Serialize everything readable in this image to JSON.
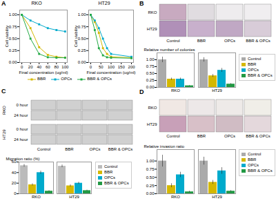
{
  "chart_data": [
    {
      "type": "line",
      "title": "RKO",
      "xlabel": "Final concentration (ug/ml)",
      "ylabel": "Cell viability",
      "x": [
        0,
        20,
        40,
        60,
        80,
        100
      ],
      "series": [
        {
          "name": "BBR",
          "color": "#d4b800",
          "values": [
            1.0,
            0.72,
            0.32,
            0.16,
            0.12,
            0.1
          ]
        },
        {
          "name": "OPCs",
          "color": "#00aacc",
          "values": [
            1.0,
            0.88,
            0.8,
            0.72,
            0.68,
            0.65
          ]
        },
        {
          "name": "BBR & OPCs",
          "color": "#22aa44",
          "values": [
            1.0,
            0.5,
            0.18,
            0.11,
            0.1,
            0.1
          ]
        }
      ],
      "xlim": [
        -5,
        105
      ],
      "xticks": [
        0,
        20,
        40,
        60,
        80,
        100
      ],
      "ylim": [
        0,
        1.1
      ],
      "yticks": [
        {
          "value": 0,
          "label": "0.00"
        },
        {
          "value": 0.25,
          "label": "0.25"
        },
        {
          "value": 0.5,
          "label": "0.50"
        },
        {
          "value": 0.75,
          "label": "0.75"
        },
        {
          "value": 1,
          "label": "1.00"
        }
      ],
      "marker": "square",
      "legend": "bottom",
      "annotations": [
        "A"
      ]
    },
    {
      "type": "line",
      "title": "HT29",
      "xlabel": "Final concentration (ug/ml)",
      "ylabel": "Cell viability",
      "x": [
        0,
        20,
        40,
        60,
        80,
        100,
        200
      ],
      "series": [
        {
          "name": "BBR",
          "color": "#d4b800",
          "values": [
            1.0,
            0.85,
            0.62,
            0.3,
            0.18,
            0.12,
            0.1
          ]
        },
        {
          "name": "OPCs",
          "color": "#00aacc",
          "values": [
            1.0,
            0.88,
            0.72,
            0.5,
            0.3,
            0.18,
            0.12
          ]
        },
        {
          "name": "BBR & OPCs",
          "color": "#22aa44",
          "values": [
            1.0,
            0.68,
            0.3,
            0.15,
            0.11,
            0.1,
            0.09
          ]
        }
      ],
      "xlim": [
        -10,
        210
      ],
      "xticks": [
        0,
        50,
        100,
        150,
        200
      ],
      "ylim": [
        0,
        1.1
      ],
      "yticks": [
        {
          "value": 0,
          "label": "0.00"
        },
        {
          "value": 0.25,
          "label": "0.25"
        },
        {
          "value": 0.5,
          "label": "0.50"
        },
        {
          "value": 0.75,
          "label": "0.75"
        },
        {
          "value": 1,
          "label": "1.00"
        }
      ],
      "marker": "square"
    },
    {
      "type": "image",
      "categories": [
        "Control",
        "BBR",
        "OPCs",
        "BBR & OPCs"
      ],
      "series": [
        {
          "name": "RKO",
          "colors": [
            "#c8aac0",
            "#e0dce0",
            "#eeecee",
            "#f0eef0"
          ]
        },
        {
          "name": "HT29",
          "colors": [
            "#b090b8",
            "#c8b0cc",
            "#c0a8c4",
            "#d8ccd8"
          ]
        }
      ],
      "annotations": [
        "B"
      ]
    },
    {
      "type": "bar",
      "categories": [
        "RKO",
        "HT29"
      ],
      "ylabel": "Relative number of colonies",
      "series": [
        {
          "name": "Control",
          "color": "#aaaaaa",
          "values": [
            1.0,
            1.0
          ],
          "errors": [
            0.1,
            0.08
          ]
        },
        {
          "name": "BBR",
          "color": "#d4b800",
          "values": [
            0.3,
            0.42
          ],
          "errors": [
            0.04,
            0.05
          ]
        },
        {
          "name": "OPCs",
          "color": "#00aacc",
          "values": [
            0.3,
            0.62
          ],
          "errors": [
            0.04,
            0.07
          ]
        },
        {
          "name": "BBR & OPCs",
          "color": "#229944",
          "values": [
            0.06,
            0.12
          ],
          "errors": [
            0.01,
            0.02
          ]
        }
      ],
      "ylim": [
        0,
        1.25
      ],
      "yticks": [
        {
          "value": 0,
          "label": "0.00"
        },
        {
          "value": 0.25,
          "label": "0.25"
        },
        {
          "value": 0.5,
          "label": "0.50"
        },
        {
          "value": 0.75,
          "label": "0.75"
        },
        {
          "value": 1,
          "label": "1.00"
        }
      ],
      "legend": "right"
    },
    {
      "type": "image",
      "title": "RKO",
      "categories": [
        "Control",
        "BBR",
        "OPCs",
        "BBR & OPCs"
      ],
      "color": "#d0d0d0",
      "series": [
        {
          "name": "0 hour"
        },
        {
          "name": "24 hour"
        }
      ],
      "annotations": [
        "C"
      ]
    },
    {
      "type": "image",
      "title": "HT29",
      "categories": [
        "Control",
        "BBR",
        "OPCs",
        "BBR & OPCs"
      ],
      "color": "#d0d0d0",
      "series": [
        {
          "name": "0 hour"
        },
        {
          "name": "24 hour"
        }
      ]
    },
    {
      "type": "bar",
      "categories": [
        "RKO",
        "HT29"
      ],
      "ylabel": "Migration ratio (%)",
      "series": [
        {
          "name": "Control",
          "color": "#bbbbbb",
          "values": [
            53,
            52
          ],
          "errors": [
            2.5,
            2.5
          ]
        },
        {
          "name": "BBR",
          "color": "#d4b800",
          "values": [
            17,
            15
          ],
          "errors": [
            2,
            2
          ]
        },
        {
          "name": "OPCs",
          "color": "#00aacc",
          "values": [
            40,
            20
          ],
          "errors": [
            3,
            2
          ]
        },
        {
          "name": "BBR & OPCs",
          "color": "#229944",
          "values": [
            5,
            6
          ],
          "errors": [
            1,
            1
          ]
        }
      ],
      "ylim": [
        0,
        60
      ],
      "yticks": [
        0,
        20,
        40,
        60
      ],
      "legend": "right"
    },
    {
      "type": "image",
      "categories": [
        "Control",
        "BBR",
        "OPCs",
        "BBR & OPCs"
      ],
      "series": [
        {
          "name": "RKO",
          "colors": [
            "#f0e8e4",
            "#ede8e8",
            "#eeeae8",
            "#f0eee8"
          ]
        },
        {
          "name": "HT29",
          "colors": [
            "#c8a0b8",
            "#d8c0c8",
            "#d0bcc4",
            "#e4d8dc"
          ]
        }
      ],
      "annotations": [
        "D"
      ]
    },
    {
      "type": "bar",
      "categories": [
        "RKO",
        "HT29"
      ],
      "ylabel": "Relative invasion ratio",
      "series": [
        {
          "name": "Control",
          "color": "#aaaaaa",
          "values": [
            1.0,
            1.0
          ],
          "errors": [
            0.18,
            0.12
          ]
        },
        {
          "name": "BBR",
          "color": "#d4b800",
          "values": [
            0.25,
            0.35
          ],
          "errors": [
            0.06,
            0.06
          ]
        },
        {
          "name": "OPCs",
          "color": "#00aacc",
          "values": [
            0.58,
            0.7
          ],
          "errors": [
            0.08,
            0.1
          ]
        },
        {
          "name": "BBR & OPCs",
          "color": "#229944",
          "values": [
            0.06,
            0.08
          ],
          "errors": [
            0.02,
            0.02
          ]
        }
      ],
      "ylim": [
        0,
        1.35
      ],
      "yticks": [
        {
          "value": 0,
          "label": "0.00"
        },
        {
          "value": 0.25,
          "label": "0.25"
        },
        {
          "value": 0.5,
          "label": "0.50"
        },
        {
          "value": 0.75,
          "label": "0.75"
        },
        {
          "value": 1,
          "label": "1.00"
        }
      ],
      "legend": "right"
    }
  ]
}
